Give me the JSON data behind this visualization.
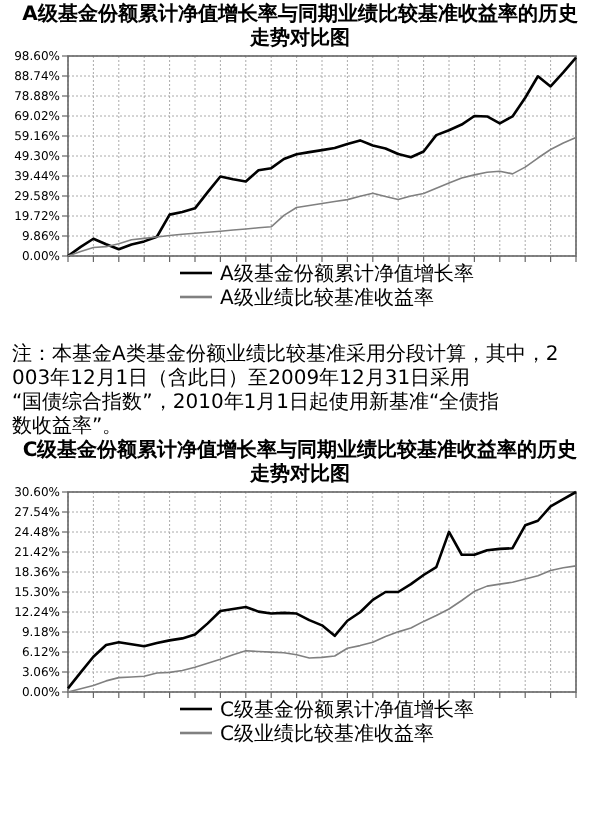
{
  "chart_data": [
    {
      "type": "line",
      "title": "A级基金份额累计净值增长率与同期业绩比较基准收益率的历史走势对比图",
      "categories": [
        null,
        null,
        null,
        null,
        null,
        null,
        null,
        null,
        null,
        null,
        null,
        null,
        null,
        null,
        null,
        null,
        null,
        null,
        null,
        null,
        null,
        null,
        null,
        null,
        null,
        null,
        null,
        null,
        null,
        null,
        null,
        null,
        null,
        null,
        null,
        null,
        null,
        null,
        null,
        null,
        null
      ],
      "ylim": [
        0,
        98.6
      ],
      "yticks": [
        {
          "value": 0,
          "label": "0.00%"
        },
        {
          "value": 9.86,
          "label": "9.86%"
        },
        {
          "value": 19.72,
          "label": "19.72%"
        },
        {
          "value": 29.58,
          "label": "29.58%"
        },
        {
          "value": 39.44,
          "label": "39.44%"
        },
        {
          "value": 49.3,
          "label": "49.30%"
        },
        {
          "value": 59.16,
          "label": "59.16%"
        },
        {
          "value": 69.02,
          "label": "69.02%"
        },
        {
          "value": 78.88,
          "label": "78.88%"
        },
        {
          "value": 88.74,
          "label": "88.74%"
        },
        {
          "value": 98.6,
          "label": "98.60%"
        }
      ],
      "grid": true,
      "legend": "bottom",
      "tick_labels": "y",
      "annotations": [
        "注：本基金A类基金份额业绩比较基准采用分段计算，其中，2003年12月1日（含此日）至2009年12月31日采用“国债综合指数”，2010年1月1日起使用新基准“全债指数收益率”。"
      ],
      "series": [
        {
          "name": "A级基金份额累计净值增长率",
          "color": "#000000",
          "values": [
            0,
            4.5,
            8.5,
            5.8,
            3.3,
            5.7,
            7.2,
            9.5,
            20.4,
            21.7,
            23.5,
            31.5,
            39.2,
            37.8,
            36.7,
            42.3,
            43.3,
            47.8,
            50.2,
            51.2,
            52.2,
            53.2,
            55.2,
            57,
            54.5,
            53,
            50.3,
            48.7,
            51.5,
            59.6,
            62,
            64.8,
            69,
            68.8,
            65.4,
            68.8,
            78,
            88.6,
            83.6,
            90.5,
            97.8
          ]
        },
        {
          "name": "A级业绩比较基准收益率",
          "color": "#808080",
          "values": [
            0,
            2.2,
            4.2,
            4.6,
            6,
            8,
            8.7,
            9.4,
            10.1,
            10.7,
            11.2,
            11.7,
            12.2,
            12.8,
            13.3,
            13.9,
            14.4,
            20,
            23.9,
            24.9,
            25.9,
            26.9,
            27.8,
            29.5,
            30.9,
            29.3,
            27.9,
            29.6,
            30.8,
            33.4,
            36,
            38.5,
            40,
            41.3,
            41.8,
            40.5,
            43.8,
            48.3,
            52.5,
            55.7,
            58.4
          ]
        }
      ]
    },
    {
      "type": "line",
      "title": "C级基金份额累计净值增长率与同期业绩比较基准收益率的历史走势对比图",
      "categories": [
        null,
        null,
        null,
        null,
        null,
        null,
        null,
        null,
        null,
        null,
        null,
        null,
        null,
        null,
        null,
        null,
        null,
        null,
        null,
        null,
        null,
        null,
        null,
        null,
        null,
        null,
        null,
        null,
        null,
        null,
        null,
        null,
        null,
        null,
        null,
        null,
        null,
        null,
        null,
        null,
        null
      ],
      "ylim": [
        0,
        30.6
      ],
      "yticks": [
        {
          "value": 0,
          "label": "0.00%"
        },
        {
          "value": 3.06,
          "label": "3.06%"
        },
        {
          "value": 6.12,
          "label": "6.12%"
        },
        {
          "value": 9.18,
          "label": "9.18%"
        },
        {
          "value": 12.24,
          "label": "12.24%"
        },
        {
          "value": 15.3,
          "label": "15.30%"
        },
        {
          "value": 18.36,
          "label": "18.36%"
        },
        {
          "value": 21.42,
          "label": "21.42%"
        },
        {
          "value": 24.48,
          "label": "24.48%"
        },
        {
          "value": 27.54,
          "label": "27.54%"
        },
        {
          "value": 30.6,
          "label": "30.60%"
        }
      ],
      "grid": true,
      "legend": "bottom",
      "tick_labels": "y",
      "series": [
        {
          "name": "C级基金份额累计净值增长率",
          "color": "#000000",
          "values": [
            0.56,
            3,
            5.4,
            7.2,
            7.6,
            7.3,
            7,
            7.5,
            7.9,
            8.2,
            8.8,
            10.5,
            12.4,
            12.7,
            13,
            12.3,
            12,
            12.1,
            12,
            11,
            10.2,
            8.6,
            10.9,
            12.2,
            14.1,
            15.3,
            15.3,
            16.5,
            17.9,
            19.1,
            24.5,
            21,
            21,
            21.7,
            21.9,
            22,
            25.5,
            26.2,
            28.4,
            29.5,
            30.6
          ]
        },
        {
          "name": "C级业绩比较基准收益率",
          "color": "#808080",
          "values": [
            0,
            0.5,
            1,
            1.7,
            2.2,
            2.3,
            2.4,
            2.9,
            3,
            3.3,
            3.8,
            4.4,
            5,
            5.7,
            6.3,
            6.2,
            6.1,
            6,
            5.7,
            5.2,
            5.3,
            5.5,
            6.7,
            7.1,
            7.6,
            8.5,
            9.2,
            9.8,
            10.8,
            11.7,
            12.7,
            14,
            15.4,
            16.2,
            16.5,
            16.8,
            17.3,
            17.8,
            18.6,
            19,
            19.3
          ]
        }
      ]
    }
  ]
}
